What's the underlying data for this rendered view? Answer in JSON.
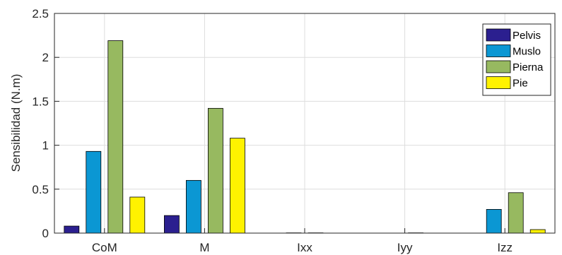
{
  "chart_data": {
    "type": "bar",
    "title": "",
    "xlabel": "",
    "ylabel": "Sensibilidad (N.m)",
    "categories": [
      "CoM",
      "M",
      "Ixx",
      "Iyy",
      "Izz"
    ],
    "ylim": [
      0,
      2.5
    ],
    "yticks": [
      0,
      0.5,
      1,
      1.5,
      2,
      2.5
    ],
    "ytick_labels": [
      "0",
      "0.5",
      "1",
      "1.5",
      "2",
      "2.5"
    ],
    "grid": true,
    "legend_position": "top-right",
    "series": [
      {
        "name": "Pelvis",
        "color": "#2b1f8f",
        "values": [
          0.08,
          0.2,
          0.0,
          0.0,
          0.0
        ]
      },
      {
        "name": "Muslo",
        "color": "#0b97d3",
        "values": [
          0.93,
          0.6,
          0.003,
          0.0,
          0.27
        ]
      },
      {
        "name": "Pierna",
        "color": "#97b960",
        "values": [
          2.19,
          1.42,
          0.003,
          0.003,
          0.46
        ]
      },
      {
        "name": "Pie",
        "color": "#fff200",
        "values": [
          0.41,
          1.08,
          0.0,
          0.0,
          0.04
        ]
      }
    ]
  }
}
